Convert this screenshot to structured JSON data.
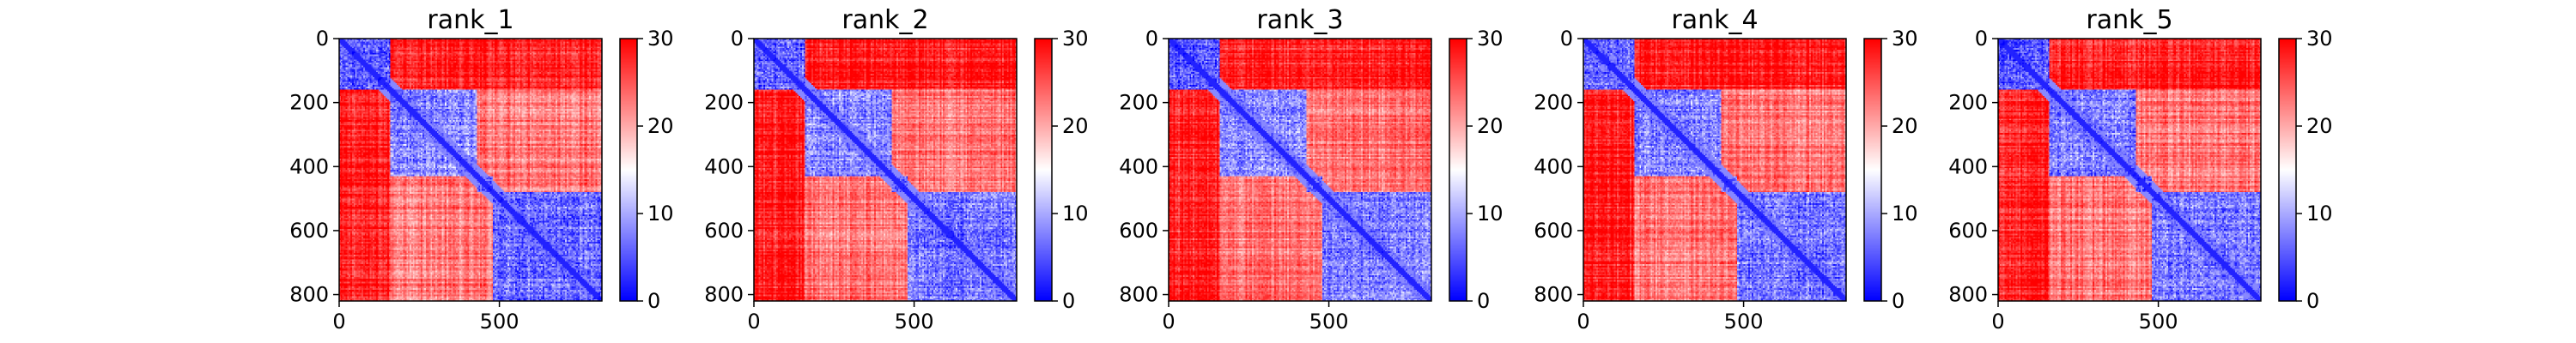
{
  "chart_data": [
    {
      "type": "heatmap",
      "title": "rank_1",
      "x_ticks": [
        0,
        500
      ],
      "y_ticks": [
        0,
        200,
        400,
        600,
        800
      ],
      "xlim": [
        0,
        820
      ],
      "ylim": [
        820,
        0
      ],
      "colorbar": {
        "ticks": [
          0,
          10,
          20,
          30
        ],
        "range": [
          0,
          30
        ],
        "colormap": "bwr"
      }
    },
    {
      "type": "heatmap",
      "title": "rank_2",
      "x_ticks": [
        0,
        500
      ],
      "y_ticks": [
        0,
        200,
        400,
        600,
        800
      ],
      "xlim": [
        0,
        820
      ],
      "ylim": [
        820,
        0
      ],
      "colorbar": {
        "ticks": [
          0,
          10,
          20,
          30
        ],
        "range": [
          0,
          30
        ],
        "colormap": "bwr"
      }
    },
    {
      "type": "heatmap",
      "title": "rank_3",
      "x_ticks": [
        0,
        500
      ],
      "y_ticks": [
        0,
        200,
        400,
        600,
        800
      ],
      "xlim": [
        0,
        820
      ],
      "ylim": [
        820,
        0
      ],
      "colorbar": {
        "ticks": [
          0,
          10,
          20,
          30
        ],
        "range": [
          0,
          30
        ],
        "colormap": "bwr"
      }
    },
    {
      "type": "heatmap",
      "title": "rank_4",
      "x_ticks": [
        0,
        500
      ],
      "y_ticks": [
        0,
        200,
        400,
        600,
        800
      ],
      "xlim": [
        0,
        820
      ],
      "ylim": [
        820,
        0
      ],
      "colorbar": {
        "ticks": [
          0,
          10,
          20,
          30
        ],
        "range": [
          0,
          30
        ],
        "colormap": "bwr"
      }
    },
    {
      "type": "heatmap",
      "title": "rank_5",
      "x_ticks": [
        0,
        500
      ],
      "y_ticks": [
        0,
        200,
        400,
        600,
        800
      ],
      "xlim": [
        0,
        820
      ],
      "ylim": [
        820,
        0
      ],
      "colorbar": {
        "ticks": [
          0,
          10,
          20,
          30
        ],
        "range": [
          0,
          30
        ],
        "colormap": "bwr"
      }
    }
  ],
  "heatmap_structure": {
    "residue_count": 820,
    "domains": [
      {
        "start": 0,
        "end": 160,
        "value": 5
      },
      {
        "start": 160,
        "end": 430,
        "value": 8
      },
      {
        "start": 430,
        "end": 480,
        "value": 6
      },
      {
        "start": 480,
        "end": 820,
        "value": 7
      }
    ],
    "background_value": 28,
    "colors": {
      "low": "#0000ff",
      "mid": "#ffffff",
      "high": "#ff0000"
    }
  }
}
